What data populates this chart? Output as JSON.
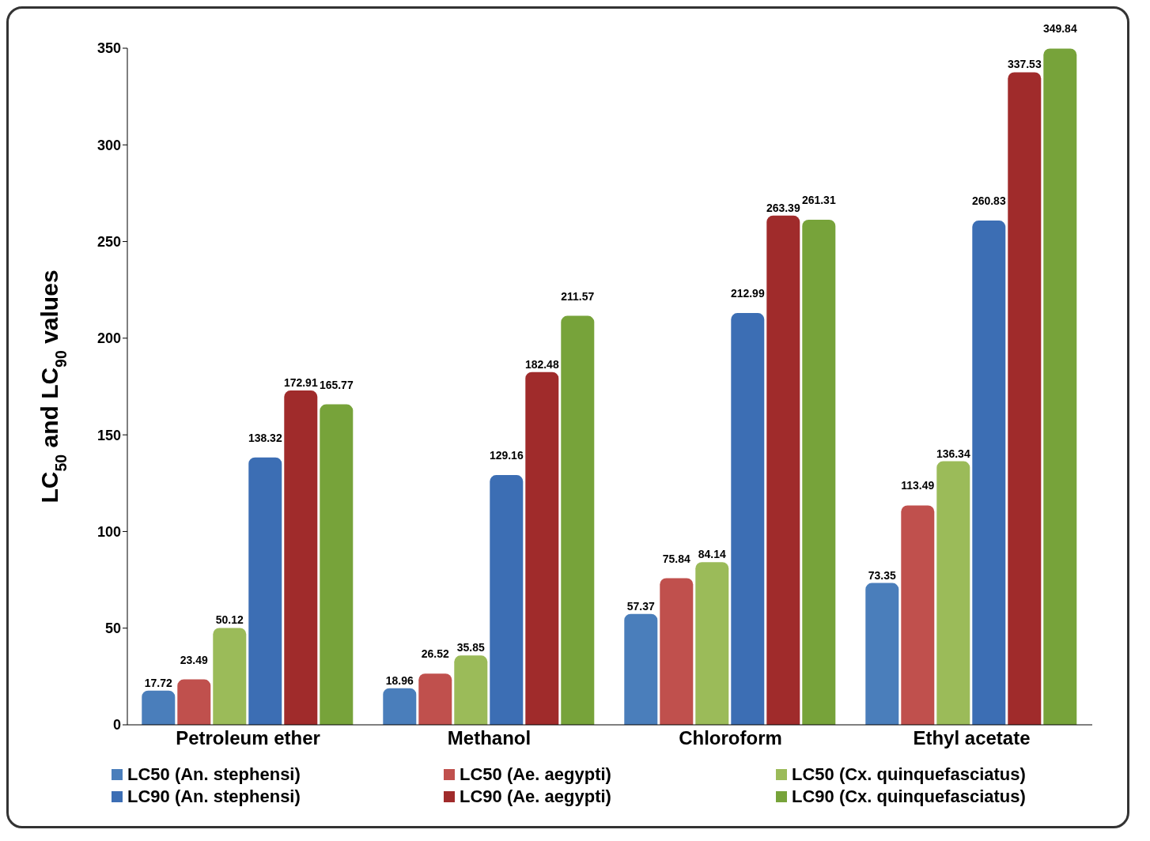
{
  "chart_data": {
    "type": "bar",
    "ylabel": "LC$_{50}$ and LC$_{90}$ values",
    "categories": [
      "Petroleum ether",
      "Methanol",
      "Chloroform",
      "Ethyl acetate"
    ],
    "series": [
      {
        "name": "LC50 (An. stephensi)",
        "color": "#4a7ebb",
        "values": [
          17.72,
          18.96,
          57.37,
          73.35
        ]
      },
      {
        "name": "LC50 (Ae. aegypti)",
        "color": "#c0504d",
        "values": [
          23.49,
          26.52,
          75.84,
          113.49
        ]
      },
      {
        "name": "LC50 (Cx. quinquefasciatus)",
        "color": "#9bbb59",
        "values": [
          50.12,
          35.85,
          84.14,
          136.34
        ]
      },
      {
        "name": "LC90 (An. stephensi)",
        "color": "#3c6eb4",
        "values": [
          138.32,
          129.16,
          212.99,
          260.83
        ]
      },
      {
        "name": "LC90 (Ae. aegypti)",
        "color": "#a02b2b",
        "values": [
          172.91,
          182.48,
          263.39,
          337.53
        ]
      },
      {
        "name": "LC90 (Cx. quinquefasciatus)",
        "color": "#77a33a",
        "values": [
          165.77,
          211.57,
          261.31,
          349.84
        ]
      }
    ],
    "ylim": [
      0,
      350
    ],
    "yticks": [
      0,
      50,
      100,
      150,
      200,
      250,
      300,
      350
    ],
    "data_labels": true,
    "legend": "bottom",
    "grid": false
  }
}
